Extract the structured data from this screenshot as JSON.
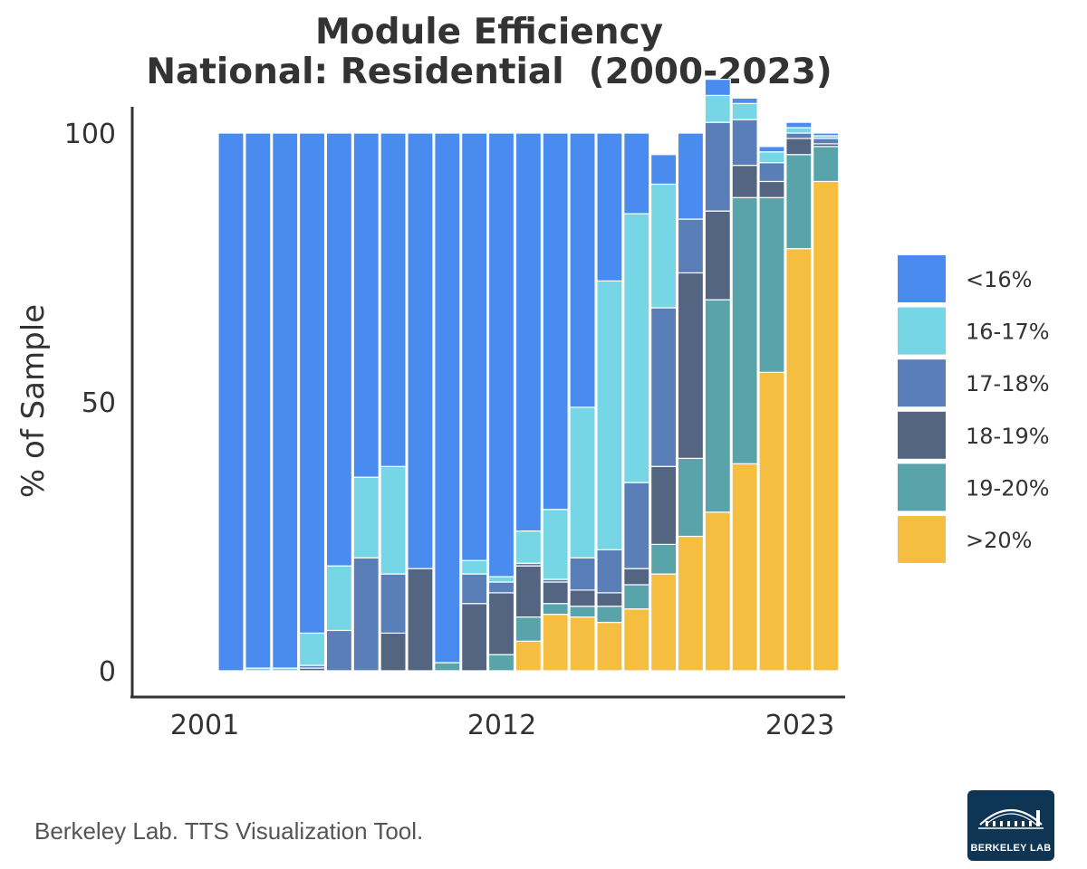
{
  "chart_data": {
    "type": "bar",
    "stacked": true,
    "title": "Module Efficiency",
    "subtitle": "National: Residential  (2000-2023)",
    "xlabel": "",
    "ylabel": "% of Sample",
    "ylim": [
      0,
      100
    ],
    "yticks": [
      0,
      50,
      100
    ],
    "xtick_labels": [
      "2001",
      "2012",
      "2023"
    ],
    "categories": [
      "2001",
      "2002",
      "2003",
      "2004",
      "2005",
      "2006",
      "2007",
      "2008",
      "2009",
      "2010",
      "2011",
      "2012",
      "2013",
      "2014",
      "2015",
      "2016",
      "2017",
      "2018",
      "2019",
      "2020",
      "2021",
      "2022",
      "2023"
    ],
    "legend_position": "right",
    "series": [
      {
        "name": ">20%",
        "color": "#F5BE41",
        "values": [
          0,
          0,
          0,
          0,
          0,
          0,
          0,
          0,
          0,
          0,
          0,
          5.5,
          10.5,
          10,
          9,
          11.5,
          18,
          25,
          29.5,
          38.5,
          55.5,
          78.5,
          91
        ]
      },
      {
        "name": "19-20%",
        "color": "#59A3AA",
        "values": [
          0,
          0,
          0,
          0,
          0,
          0,
          0,
          0,
          1.5,
          0,
          3,
          4.5,
          2,
          2,
          3,
          4.5,
          5.5,
          14.5,
          39.5,
          49.5,
          32.5,
          17.5,
          6.5
        ]
      },
      {
        "name": "18-19%",
        "color": "#536581",
        "values": [
          0,
          0,
          0,
          0.5,
          0,
          0,
          7,
          19,
          0,
          12.5,
          11.5,
          9.5,
          4,
          3,
          2.5,
          3,
          14.5,
          34.5,
          16.5,
          6,
          3,
          3,
          0.5
        ]
      },
      {
        "name": "17-18%",
        "color": "#5A7FB8",
        "values": [
          0,
          0,
          0,
          0.5,
          7.5,
          21,
          11,
          0,
          0,
          5.5,
          2,
          0.5,
          0.5,
          6,
          8,
          16,
          29.5,
          10,
          16.5,
          8.5,
          3.5,
          1,
          1
        ]
      },
      {
        "name": "16-17%",
        "color": "#77D6E6",
        "values": [
          0,
          0.5,
          0.5,
          6,
          12,
          15,
          20,
          0,
          0,
          2.5,
          1,
          6,
          13,
          28,
          50,
          50,
          23,
          0,
          5,
          3,
          2,
          1,
          0.5
        ]
      },
      {
        "name": "<16%",
        "color": "#498BEE",
        "values": [
          100,
          99.5,
          99.5,
          93,
          80.5,
          64,
          62,
          81,
          98.5,
          79.5,
          82.5,
          74,
          70,
          51,
          27.5,
          15,
          5.5,
          16,
          3,
          1,
          1,
          1,
          0.5
        ]
      }
    ],
    "legend_order": [
      "<16%",
      "16-17%",
      "17-18%",
      "18-19%",
      "19-20%",
      ">20%"
    ]
  },
  "footer": {
    "source": "Berkeley Lab. TTS Visualization Tool.",
    "logo_text": "BERKELEY LAB"
  }
}
